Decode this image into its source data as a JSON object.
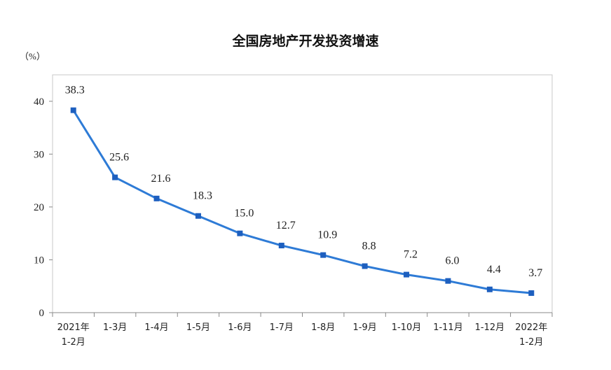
{
  "chart_data": {
    "type": "line",
    "title": "全国房地产开发投资增速",
    "unit_label": "（%）",
    "categories": [
      "2021年\n1-2月",
      "1-3月",
      "1-4月",
      "1-5月",
      "1-6月",
      "1-7月",
      "1-8月",
      "1-9月",
      "1-10月",
      "1-11月",
      "1-12月",
      "2022年\n1-2月"
    ],
    "values": [
      38.3,
      25.6,
      21.6,
      18.3,
      15.0,
      12.7,
      10.9,
      8.8,
      7.2,
      6.0,
      4.4,
      3.7
    ],
    "value_labels": [
      "38.3",
      "25.6",
      "21.6",
      "18.3",
      "15.0",
      "12.7",
      "10.9",
      "8.8",
      "7.2",
      "6.0",
      "4.4",
      "3.7"
    ],
    "y_ticks": [
      0,
      10,
      20,
      30,
      40
    ],
    "ylim": [
      0,
      45
    ],
    "grid": false,
    "legend": "none",
    "line_color": "#2e7bd6",
    "marker_color": "#1d5fbf"
  }
}
